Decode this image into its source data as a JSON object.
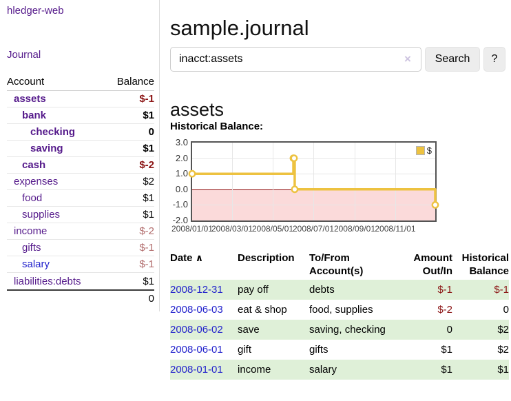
{
  "sidebar": {
    "brand": "hledger-web",
    "journal_link": "Journal",
    "table": {
      "account_header": "Account",
      "balance_header": "Balance",
      "accounts": [
        {
          "name": "assets",
          "balance": "$-1",
          "name_class": "lvl1 cur",
          "bal_class": "strong neg"
        },
        {
          "name": "bank",
          "balance": "$1",
          "name_class": "lvl2 cur",
          "bal_class": "strong"
        },
        {
          "name": "checking",
          "balance": "0",
          "name_class": "lvl3 cur",
          "bal_class": "strong"
        },
        {
          "name": "saving",
          "balance": "$1",
          "name_class": "lvl3 cur",
          "bal_class": "strong"
        },
        {
          "name": "cash",
          "balance": "$-2",
          "name_class": "lvl2 cur",
          "bal_class": "strong neg"
        },
        {
          "name": "expenses",
          "balance": "$2",
          "name_class": "lvl1",
          "bal_class": ""
        },
        {
          "name": "food",
          "balance": "$1",
          "name_class": "lvl2",
          "bal_class": ""
        },
        {
          "name": "supplies",
          "balance": "$1",
          "name_class": "lvl2",
          "bal_class": ""
        },
        {
          "name": "income",
          "balance": "$-2",
          "name_class": "lvl1",
          "bal_class": "rose"
        },
        {
          "name": "gifts",
          "balance": "$-1",
          "name_class": "lvl2",
          "bal_class": "rose"
        },
        {
          "name": "salary",
          "balance": "$-1",
          "name_class": "lvl2 blue",
          "bal_class": "rose"
        },
        {
          "name": "liabilities:debts",
          "balance": "$1",
          "name_class": "lvl1 last",
          "bal_class": ""
        }
      ],
      "total": "0"
    }
  },
  "main": {
    "title": "sample.journal",
    "search": {
      "value": "inacct:assets",
      "clear_icon": "×",
      "search_button": "Search",
      "help_button": "?"
    },
    "account_heading": "assets",
    "chart_title": "Historical Balance:"
  },
  "chart_data": {
    "type": "line",
    "step": true,
    "title": "Historical Balance",
    "series": [
      {
        "name": "$",
        "color": "#edc240",
        "points": [
          [
            "2008/01/01",
            1
          ],
          [
            "2008/06/01",
            2
          ],
          [
            "2008/06/02",
            2
          ],
          [
            "2008/06/03",
            0
          ],
          [
            "2008/12/31",
            -1
          ]
        ]
      }
    ],
    "ylim": [
      -2,
      3
    ],
    "yticks": [
      3.0,
      2.0,
      1.0,
      0.0,
      -1.0,
      -2.0
    ],
    "xticks": [
      "2008/01/01",
      "2008/03/01",
      "2008/05/01",
      "2008/07/01",
      "2008/09/01",
      "2008/11/01"
    ],
    "xlim": [
      "2008/01/01",
      "2008/12/31"
    ],
    "grid": true,
    "legend_position": "top-right",
    "zero_line_color": "#8b0000",
    "negative_region_color": "#fbdada"
  },
  "register": {
    "headers": {
      "date": "Date",
      "sort_icon": "∧",
      "description": "Description",
      "account_line1": "To/From",
      "account_line2": "Account(s)",
      "amount_line1": "Amount",
      "amount_line2": "Out/In",
      "balance_line1": "Historical",
      "balance_line2": "Balance"
    },
    "rows": [
      {
        "date": "2008-12-31",
        "description": "pay off",
        "accounts": "debts",
        "amount": "$-1",
        "amount_class": "neg",
        "balance": "$-1",
        "balance_class": "neg",
        "row_class": "even"
      },
      {
        "date": "2008-06-03",
        "description": "eat & shop",
        "accounts": "food, supplies",
        "amount": "$-2",
        "amount_class": "neg",
        "balance": "0",
        "balance_class": "",
        "row_class": "odd"
      },
      {
        "date": "2008-06-02",
        "description": "save",
        "accounts": "saving, checking",
        "amount": "0",
        "amount_class": "",
        "balance": "$2",
        "balance_class": "",
        "row_class": "even"
      },
      {
        "date": "2008-06-01",
        "description": "gift",
        "accounts": "gifts",
        "amount": "$1",
        "amount_class": "",
        "balance": "$2",
        "balance_class": "",
        "row_class": "odd"
      },
      {
        "date": "2008-01-01",
        "description": "income",
        "accounts": "salary",
        "amount": "$1",
        "amount_class": "",
        "balance": "$1",
        "balance_class": "",
        "row_class": "even"
      }
    ]
  }
}
